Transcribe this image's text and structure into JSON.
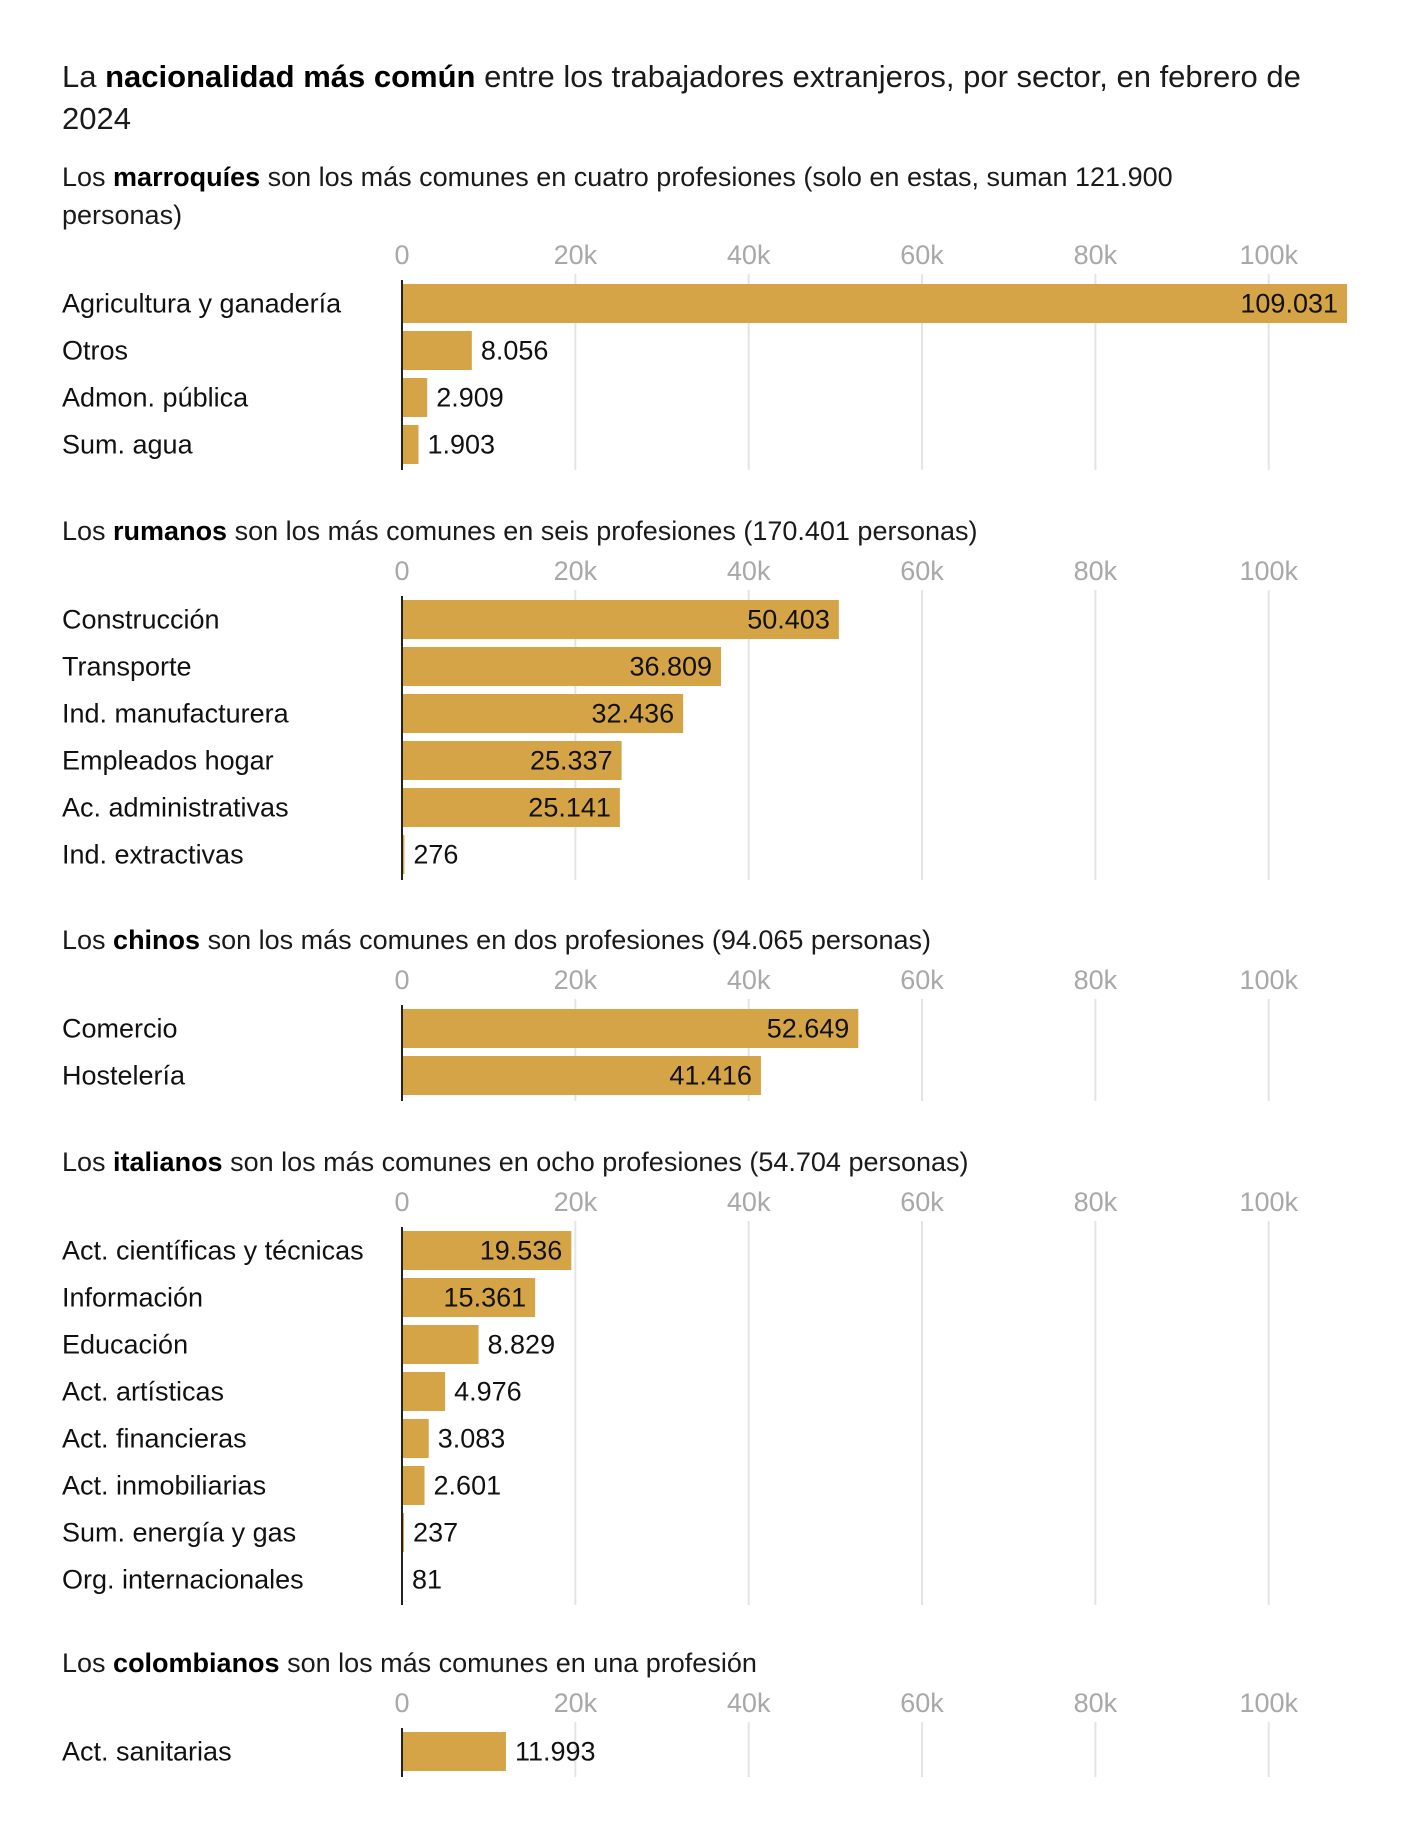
{
  "title": {
    "pre": "La ",
    "bold": "nacionalidad más común",
    "post": " entre los trabajadores extranjeros, por sector, en febrero de 2024"
  },
  "colors": {
    "bar": "#D4A447",
    "gridline": "#e4e4e4",
    "axis": "#222222",
    "tick_text": "#a8a8a8"
  },
  "chart_data": [
    {
      "type": "bar",
      "orientation": "horizontal",
      "subtitle": {
        "pre": "Los ",
        "bold": "marroquíes",
        "post": " son los más comunes en cuatro profesiones (solo en estas, suman 121.900 personas)"
      },
      "categories": [
        "Agricultura y ganadería",
        "Otros",
        "Admon. pública",
        "Sum. agua"
      ],
      "values": [
        109031,
        8056,
        2909,
        1903
      ],
      "value_labels": [
        "109.031",
        "8.056",
        "2.909",
        "1.903"
      ],
      "xticks": [
        0,
        20000,
        40000,
        60000,
        80000,
        100000
      ],
      "xtick_labels": [
        "0",
        "20k",
        "40k",
        "60k",
        "80k",
        "100k"
      ],
      "xlim": [
        0,
        109031
      ]
    },
    {
      "type": "bar",
      "orientation": "horizontal",
      "subtitle": {
        "pre": "Los ",
        "bold": "rumanos",
        "post": " son los más comunes en seis profesiones (170.401 personas)"
      },
      "categories": [
        "Construcción",
        "Transporte",
        "Ind. manufacturera",
        "Empleados hogar",
        "Ac. administrativas",
        "Ind. extractivas"
      ],
      "values": [
        50403,
        36809,
        32436,
        25337,
        25141,
        276
      ],
      "value_labels": [
        "50.403",
        "36.809",
        "32.436",
        "25.337",
        "25.141",
        "276"
      ],
      "xticks": [
        0,
        20000,
        40000,
        60000,
        80000,
        100000
      ],
      "xtick_labels": [
        "0",
        "20k",
        "40k",
        "60k",
        "80k",
        "100k"
      ],
      "xlim": [
        0,
        109031
      ]
    },
    {
      "type": "bar",
      "orientation": "horizontal",
      "subtitle": {
        "pre": "Los ",
        "bold": "chinos",
        "post": " son los más comunes en dos profesiones (94.065 personas)"
      },
      "categories": [
        "Comercio",
        "Hostelería"
      ],
      "values": [
        52649,
        41416
      ],
      "value_labels": [
        "52.649",
        "41.416"
      ],
      "xticks": [
        0,
        20000,
        40000,
        60000,
        80000,
        100000
      ],
      "xtick_labels": [
        "0",
        "20k",
        "40k",
        "60k",
        "80k",
        "100k"
      ],
      "xlim": [
        0,
        109031
      ]
    },
    {
      "type": "bar",
      "orientation": "horizontal",
      "subtitle": {
        "pre": "Los ",
        "bold": "italianos",
        "post": " son los más comunes en ocho profesiones (54.704 personas)"
      },
      "categories": [
        "Act. científicas y técnicas",
        "Información",
        "Educación",
        "Act. artísticas",
        "Act. financieras",
        "Act. inmobiliarias",
        "Sum. energía y gas",
        "Org. internacionales"
      ],
      "values": [
        19536,
        15361,
        8829,
        4976,
        3083,
        2601,
        237,
        81
      ],
      "value_labels": [
        "19.536",
        "15.361",
        "8.829",
        "4.976",
        "3.083",
        "2.601",
        "237",
        "81"
      ],
      "xticks": [
        0,
        20000,
        40000,
        60000,
        80000,
        100000
      ],
      "xtick_labels": [
        "0",
        "20k",
        "40k",
        "60k",
        "80k",
        "100k"
      ],
      "xlim": [
        0,
        109031
      ]
    },
    {
      "type": "bar",
      "orientation": "horizontal",
      "subtitle": {
        "pre": "Los ",
        "bold": "colombianos",
        "post": " son los más comunes en una profesión"
      },
      "categories": [
        "Act. sanitarias"
      ],
      "values": [
        11993
      ],
      "value_labels": [
        "11.993"
      ],
      "xticks": [
        0,
        20000,
        40000,
        60000,
        80000,
        100000
      ],
      "xtick_labels": [
        "0",
        "20k",
        "40k",
        "60k",
        "80k",
        "100k"
      ],
      "xlim": [
        0,
        109031
      ]
    }
  ]
}
